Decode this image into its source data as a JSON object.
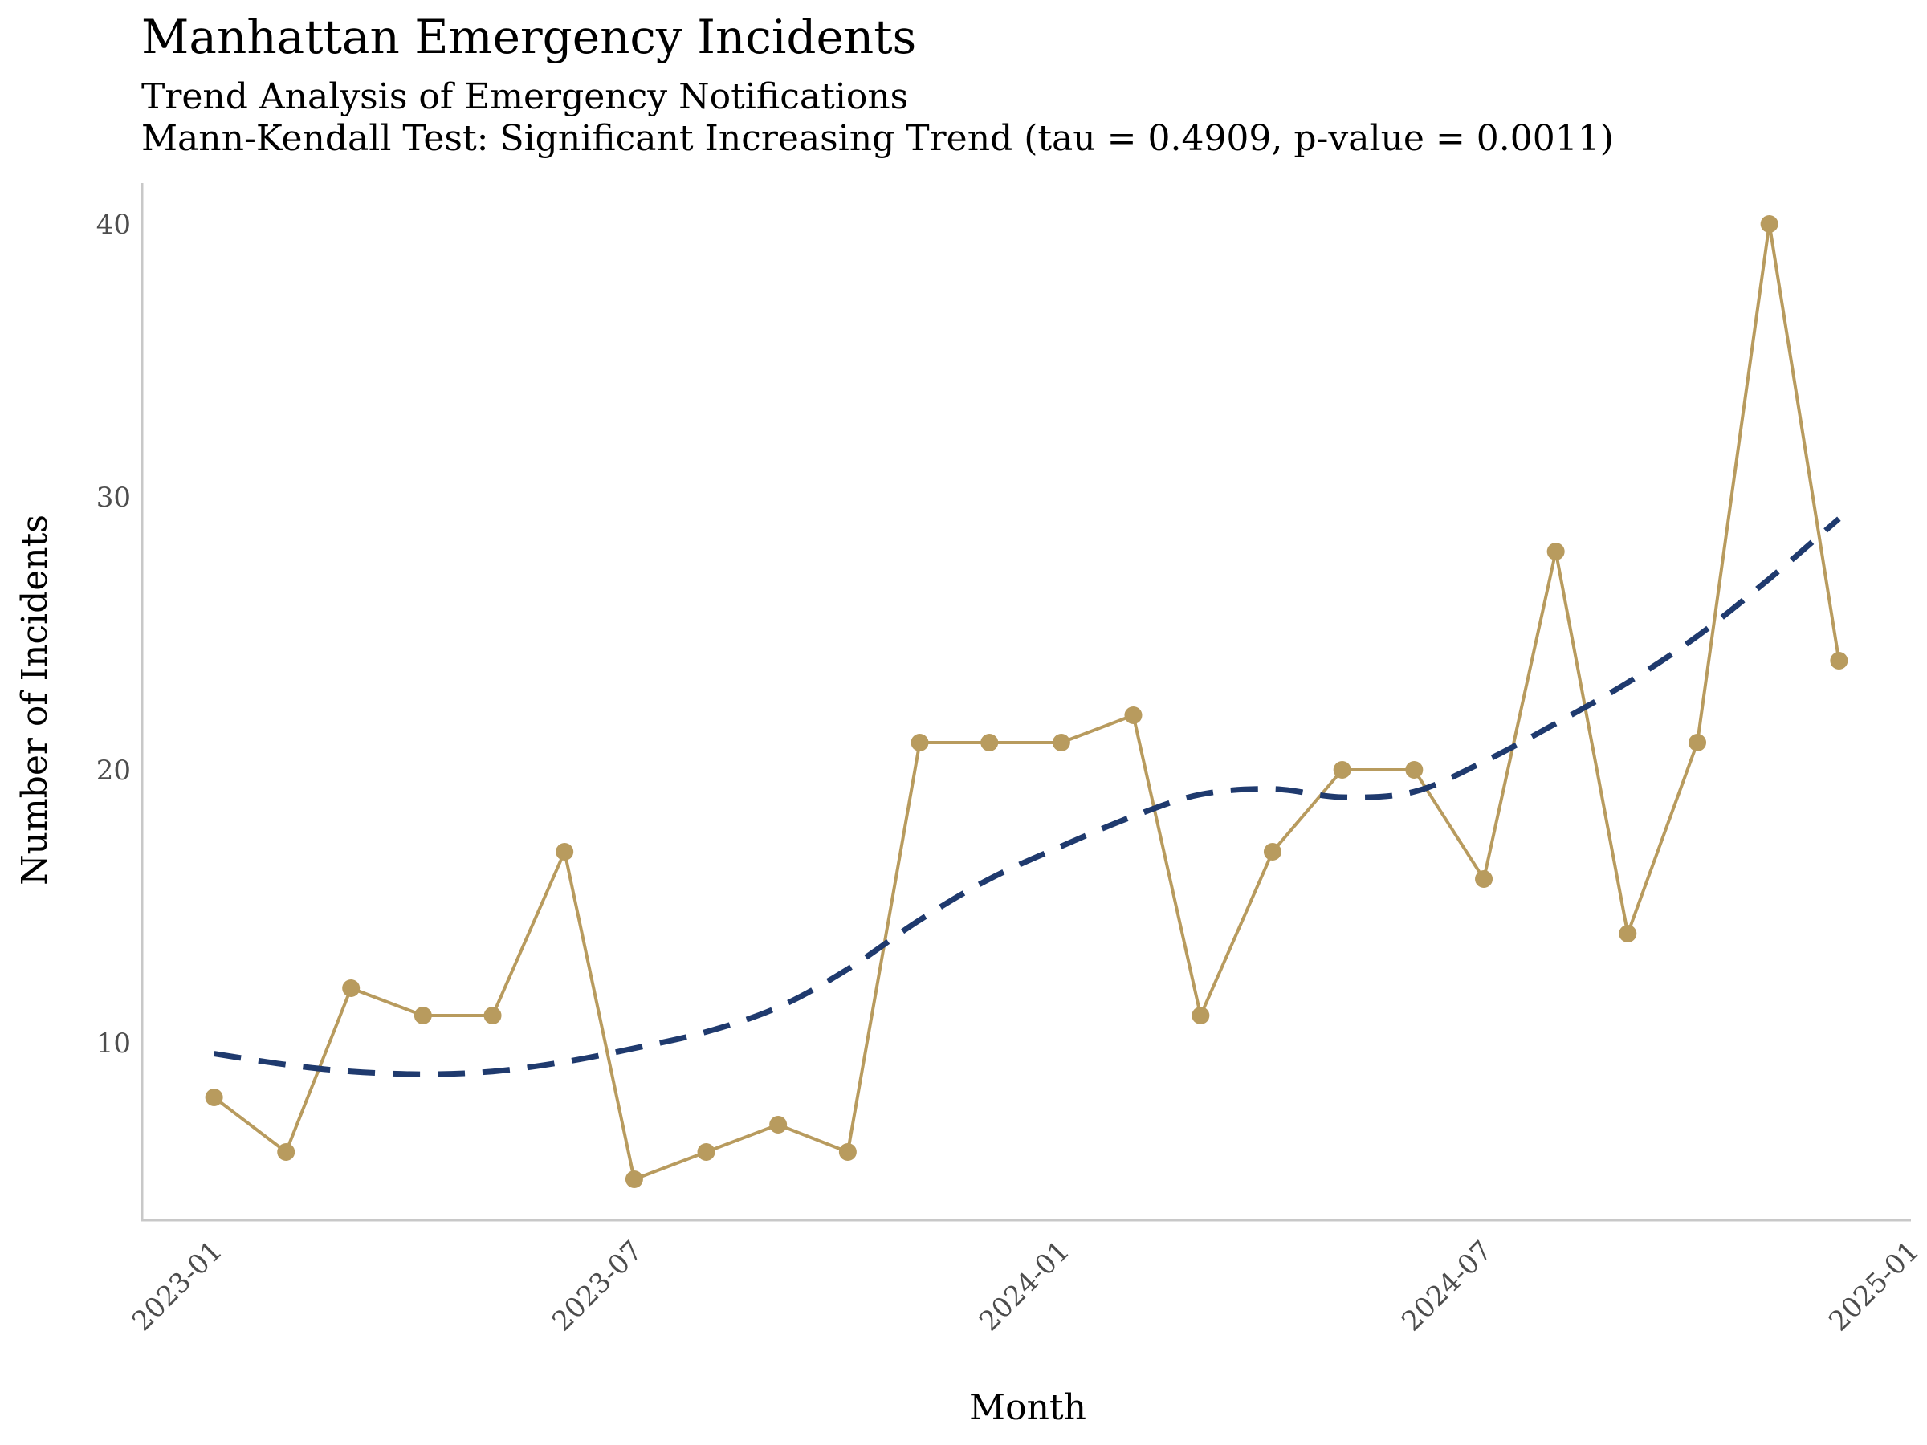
{
  "chart_data": {
    "type": "line",
    "title": "Manhattan Emergency Incidents",
    "subtitle": "Trend Analysis of Emergency Notifications",
    "subtitle2": "Mann-Kendall Test: Significant Increasing Trend (tau = 0.4909, p-value = 0.0011)",
    "xlabel": "Month",
    "ylabel": "Number of Incidents",
    "x_ticks": [
      "2023-01",
      "2023-07",
      "2024-01",
      "2024-07",
      "2025-01"
    ],
    "y_ticks": [
      10,
      20,
      30,
      40
    ],
    "ylim": [
      3.5,
      41.5
    ],
    "xlim": [
      "2022-12-01",
      "2025-01-01"
    ],
    "grid": false,
    "series": [
      {
        "color": "#B89B5E",
        "style": "solid-with-markers",
        "x": [
          "2023-01-01",
          "2023-02-01",
          "2023-03-01",
          "2023-04-01",
          "2023-05-01",
          "2023-06-01",
          "2023-07-01",
          "2023-08-01",
          "2023-09-01",
          "2023-10-01",
          "2023-11-01",
          "2023-12-01",
          "2024-01-01",
          "2024-02-01",
          "2024-03-01",
          "2024-04-01",
          "2024-05-01",
          "2024-06-01",
          "2024-07-01",
          "2024-08-01",
          "2024-09-01",
          "2024-10-01",
          "2024-11-01",
          "2024-12-01"
        ],
        "values": [
          8,
          6,
          12,
          11,
          11,
          17,
          5,
          6,
          7,
          6,
          21,
          21,
          21,
          22,
          11,
          17,
          20,
          20,
          16,
          28,
          14,
          21,
          40,
          24
        ]
      },
      {
        "color": "#1F3A6E",
        "style": "dashed-smooth-trend",
        "x": [
          "2023-01-01",
          "2023-02-01",
          "2023-03-01",
          "2023-04-01",
          "2023-05-01",
          "2023-06-01",
          "2023-07-01",
          "2023-08-01",
          "2023-09-01",
          "2023-10-01",
          "2023-11-01",
          "2023-12-01",
          "2024-01-01",
          "2024-02-01",
          "2024-03-01",
          "2024-04-01",
          "2024-05-01",
          "2024-06-01",
          "2024-07-01",
          "2024-08-01",
          "2024-09-01",
          "2024-10-01",
          "2024-11-01",
          "2024-12-01"
        ],
        "values": [
          9.6,
          9.2,
          8.95,
          8.85,
          8.95,
          9.3,
          9.8,
          10.4,
          11.3,
          12.7,
          14.5,
          16.0,
          17.2,
          18.3,
          19.1,
          19.3,
          19.0,
          19.2,
          20.3,
          21.7,
          23.2,
          24.9,
          27.0,
          29.2
        ]
      }
    ]
  }
}
